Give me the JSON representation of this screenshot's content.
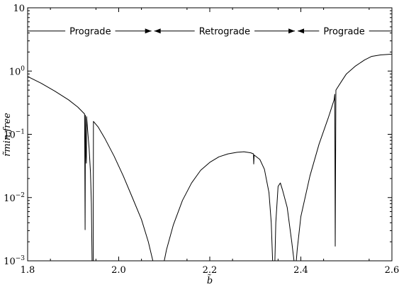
{
  "chart_data": {
    "type": "line",
    "xlabel": "b̃",
    "ylabel": "r̃min,free",
    "xlim": [
      1.8,
      2.6
    ],
    "ylim": [
      0.001,
      10
    ],
    "yscale": "log",
    "grid": false,
    "x_ticks": [
      {
        "value": 1.8,
        "label": "1.8"
      },
      {
        "value": 2.0,
        "label": "2.0"
      },
      {
        "value": 2.2,
        "label": "2.2"
      },
      {
        "value": 2.4,
        "label": "2.4"
      },
      {
        "value": 2.6,
        "label": "2.6"
      }
    ],
    "y_ticks": [
      {
        "value": 0.001,
        "base": "10",
        "exp": "−3"
      },
      {
        "value": 0.01,
        "base": "10",
        "exp": "−2"
      },
      {
        "value": 0.1,
        "base": "10",
        "exp": "−1"
      },
      {
        "value": 1,
        "base": "10",
        "exp": "0"
      },
      {
        "value": 10,
        "base": "10",
        "exp": ""
      }
    ],
    "regions": [
      {
        "label": "Prograde",
        "x_start": 1.8,
        "x_end": 2.075,
        "arrow_start": false,
        "arrow_end": true
      },
      {
        "label": "Retrograde",
        "x_start": 2.075,
        "x_end": 2.39,
        "arrow_start": true,
        "arrow_end": true
      },
      {
        "label": "Prograde",
        "x_start": 2.39,
        "x_end": 2.6,
        "arrow_start": true,
        "arrow_end": false
      }
    ],
    "region_arrow_y": 4.3,
    "series": [
      {
        "segments": [
          [
            [
              1.8,
              0.82
            ],
            [
              1.83,
              0.64
            ],
            [
              1.86,
              0.48
            ],
            [
              1.89,
              0.35
            ],
            [
              1.91,
              0.27
            ],
            [
              1.925,
              0.21
            ],
            [
              1.9255,
              0.05
            ],
            [
              1.9262,
              0.0031
            ],
            [
              1.927,
              0.2
            ],
            [
              1.9275,
              0.065
            ],
            [
              1.929,
              0.035
            ],
            [
              1.9295,
              0.19
            ],
            [
              1.932,
              0.11
            ],
            [
              1.935,
              0.06
            ],
            [
              1.938,
              0.025
            ],
            [
              1.94,
              0.008
            ],
            [
              1.9415,
              0.001
            ]
          ],
          [
            [
              1.944,
              0.001
            ],
            [
              1.9445,
              0.16
            ],
            [
              1.955,
              0.13
            ],
            [
              1.97,
              0.085
            ],
            [
              1.99,
              0.045
            ],
            [
              2.01,
              0.022
            ],
            [
              2.03,
              0.01
            ],
            [
              2.05,
              0.0045
            ],
            [
              2.065,
              0.002
            ],
            [
              2.075,
              0.001
            ]
          ],
          [
            [
              2.1,
              0.001
            ],
            [
              2.105,
              0.0015
            ],
            [
              2.12,
              0.0037
            ],
            [
              2.14,
              0.009
            ],
            [
              2.16,
              0.017
            ],
            [
              2.18,
              0.027
            ],
            [
              2.2,
              0.036
            ],
            [
              2.22,
              0.044
            ],
            [
              2.24,
              0.049
            ],
            [
              2.26,
              0.052
            ],
            [
              2.275,
              0.053
            ],
            [
              2.29,
              0.051
            ],
            [
              2.296,
              0.049
            ],
            [
              2.2965,
              0.034
            ],
            [
              2.2975,
              0.047
            ],
            [
              2.31,
              0.04
            ],
            [
              2.32,
              0.028
            ],
            [
              2.33,
              0.012
            ],
            [
              2.335,
              0.004
            ],
            [
              2.338,
              0.001
            ]
          ],
          [
            [
              2.343,
              0.001
            ],
            [
              2.345,
              0.004
            ],
            [
              2.35,
              0.015
            ],
            [
              2.355,
              0.017
            ],
            [
              2.36,
              0.013
            ],
            [
              2.37,
              0.007
            ],
            [
              2.38,
              0.002
            ],
            [
              2.385,
              0.001
            ]
          ],
          [
            [
              2.39,
              0.001
            ],
            [
              2.392,
              0.0015
            ],
            [
              2.4,
              0.005
            ],
            [
              2.42,
              0.022
            ],
            [
              2.44,
              0.07
            ],
            [
              2.46,
              0.18
            ],
            [
              2.47,
              0.3
            ],
            [
              2.473,
              0.35
            ],
            [
              2.4745,
              0.43
            ],
            [
              2.4755,
              0.0017
            ],
            [
              2.477,
              0.5
            ],
            [
              2.49,
              0.7
            ],
            [
              2.5,
              0.9
            ],
            [
              2.52,
              1.2
            ],
            [
              2.54,
              1.5
            ],
            [
              2.555,
              1.7
            ],
            [
              2.575,
              1.8
            ],
            [
              2.6,
              1.85
            ]
          ]
        ]
      }
    ]
  }
}
